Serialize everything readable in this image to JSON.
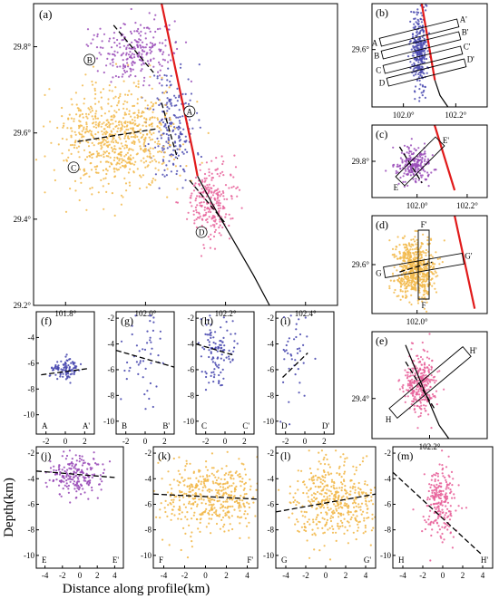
{
  "colors": {
    "A": "#4a4ab0",
    "B": "#9a4cb8",
    "C": "#f2b84a",
    "D": "#e8629a",
    "fault": "#e11b1b",
    "trace": "#000000"
  },
  "axis_labels": {
    "y": "Depth(km)",
    "x": "Distance along profile(km)"
  },
  "chart_data": [
    {
      "type": "scatter",
      "panel": "(a)",
      "xticks": [
        "101.8°",
        "102.0°",
        "102.2°",
        "102.4°"
      ],
      "yticks": [
        "29.8°",
        "29.6°",
        "29.4°",
        "29.2°"
      ],
      "xlim": [
        101.72,
        102.48
      ],
      "ylim": [
        29.2,
        29.9
      ],
      "cluster_labels": [
        "A",
        "B",
        "C",
        "D"
      ],
      "clusters": [
        {
          "name": "A",
          "center": [
            102.07,
            29.62
          ],
          "spread": [
            0.028,
            0.07
          ],
          "count": 200
        },
        {
          "name": "B",
          "center": [
            101.97,
            29.79
          ],
          "spread": [
            0.05,
            0.035
          ],
          "count": 240
        },
        {
          "name": "C",
          "center": [
            101.93,
            29.59
          ],
          "spread": [
            0.07,
            0.06
          ],
          "count": 700
        },
        {
          "name": "D",
          "center": [
            102.16,
            29.44
          ],
          "spread": [
            0.03,
            0.045
          ],
          "count": 260
        }
      ],
      "fault_line": [
        [
          102.04,
          29.9
        ],
        [
          102.12,
          29.55
        ],
        [
          102.13,
          29.5
        ]
      ],
      "trace_line": [
        [
          102.13,
          29.5
        ],
        [
          102.17,
          29.43
        ],
        [
          102.22,
          29.35
        ],
        [
          102.27,
          29.27
        ],
        [
          102.31,
          29.2
        ]
      ],
      "fit_lines": [
        [
          [
            101.92,
            29.85
          ],
          [
            102.02,
            29.74
          ]
        ],
        [
          [
            101.83,
            29.58
          ],
          [
            102.03,
            29.61
          ]
        ],
        [
          [
            102.04,
            29.67
          ],
          [
            102.08,
            29.54
          ]
        ],
        [
          [
            102.11,
            29.49
          ],
          [
            102.2,
            29.39
          ]
        ]
      ]
    },
    {
      "type": "scatter",
      "panel": "(b)",
      "xticks": [
        "102.0°",
        "102.2°"
      ],
      "yticks": [
        "29.6°"
      ],
      "xlim": [
        101.88,
        102.32
      ],
      "ylim": [
        29.45,
        29.72
      ],
      "profile_labels": [
        "A",
        "A'",
        "B",
        "B'",
        "C",
        "C'",
        "D",
        "D'"
      ],
      "cluster": {
        "name": "A",
        "center": [
          102.06,
          29.6
        ],
        "spread": [
          0.015,
          0.05
        ],
        "count": 300
      },
      "fault_line": [
        [
          102.07,
          29.72
        ],
        [
          102.12,
          29.52
        ]
      ],
      "trace_line": [
        [
          102.12,
          29.52
        ],
        [
          102.14,
          29.48
        ],
        [
          102.17,
          29.45
        ]
      ]
    },
    {
      "type": "scatter",
      "panel": "(c)",
      "xticks": [
        "102.0°",
        "102.2°"
      ],
      "yticks": [
        "29.8°"
      ],
      "xlim": [
        101.82,
        102.28
      ],
      "ylim": [
        29.7,
        29.9
      ],
      "profile_labels": [
        "E",
        "E'"
      ],
      "cluster": {
        "name": "B",
        "center": [
          101.99,
          29.79
        ],
        "spread": [
          0.035,
          0.025
        ],
        "count": 220
      },
      "fault_line": [
        [
          102.07,
          29.9
        ],
        [
          102.15,
          29.72
        ]
      ]
    },
    {
      "type": "scatter",
      "panel": "(d)",
      "xticks": [
        "102.0°"
      ],
      "yticks": [
        "29.6°"
      ],
      "xlim": [
        101.82,
        102.28
      ],
      "ylim": [
        29.5,
        29.7
      ],
      "profile_labels": [
        "F",
        "F'",
        "G",
        "G'"
      ],
      "cluster": {
        "name": "C",
        "center": [
          101.99,
          29.59
        ],
        "spread": [
          0.04,
          0.03
        ],
        "count": 600
      },
      "fault_line": [
        [
          102.15,
          29.7
        ],
        [
          102.23,
          29.51
        ]
      ]
    },
    {
      "type": "scatter",
      "panel": "(e)",
      "xticks": [
        "102.2°"
      ],
      "yticks": [
        "29.4°"
      ],
      "xlim": [
        102.08,
        102.32
      ],
      "ylim": [
        29.34,
        29.5
      ],
      "profile_labels": [
        "H",
        "H'"
      ],
      "cluster": {
        "name": "D",
        "center": [
          102.18,
          29.42
        ],
        "spread": [
          0.018,
          0.022
        ],
        "count": 300
      },
      "trace_line": [
        [
          102.15,
          29.48
        ],
        [
          102.19,
          29.41
        ],
        [
          102.22,
          29.36
        ],
        [
          102.24,
          29.34
        ]
      ]
    },
    {
      "type": "scatter",
      "panel": "(f)",
      "cluster": "A",
      "profile_ends": [
        "A",
        "A'"
      ],
      "xticks": [
        "-2",
        "0",
        "2"
      ],
      "yticks": [
        "-4",
        "-6",
        "-8",
        "-10"
      ],
      "xlim": [
        -3,
        3
      ],
      "ylim": [
        -11.5,
        -2
      ],
      "points_model": {
        "center_x": 0,
        "center_y": -6.5,
        "spread_x": 0.8,
        "spread_y": 0.4,
        "count": 100
      },
      "fit": [
        [
          -2.5,
          -6.9
        ],
        [
          2.5,
          -6.4
        ]
      ]
    },
    {
      "type": "scatter",
      "panel": "(g)",
      "cluster": "A",
      "profile_ends": [
        "B",
        "B'"
      ],
      "xticks": [
        "-2",
        "0",
        "2"
      ],
      "yticks": [
        "-2",
        "-4",
        "-6",
        "-8",
        "-10"
      ],
      "xlim": [
        -3,
        3
      ],
      "ylim": [
        -11,
        -1.5
      ],
      "points_model": {
        "center_x": -0.2,
        "center_y": -5,
        "spread_x": 1.1,
        "spread_y": 2,
        "count": 50
      },
      "fit": [
        [
          -3,
          -4.5
        ],
        [
          3,
          -5.8
        ]
      ]
    },
    {
      "type": "scatter",
      "panel": "(h)",
      "cluster": "A",
      "profile_ends": [
        "C",
        "C'"
      ],
      "xticks": [
        "-2",
        "0",
        "2"
      ],
      "yticks": [
        "-2",
        "-4",
        "-6",
        "-8",
        "-10"
      ],
      "xlim": [
        -3,
        3
      ],
      "ylim": [
        -11,
        -1.5
      ],
      "points_model": {
        "center_x": -0.8,
        "center_y": -4.6,
        "spread_x": 0.9,
        "spread_y": 1.4,
        "count": 110
      },
      "fit": [
        [
          -3,
          -4
        ],
        [
          1,
          -4.9
        ]
      ]
    },
    {
      "type": "scatter",
      "panel": "(i)",
      "cluster": "A",
      "profile_ends": [
        "D",
        "D'"
      ],
      "xticks": [
        "-2",
        "0",
        "2"
      ],
      "yticks": [
        "-2",
        "-4",
        "-6",
        "-8",
        "-10"
      ],
      "xlim": [
        -3,
        3
      ],
      "ylim": [
        -11,
        -1.5
      ],
      "points_model": {
        "center_x": -1,
        "center_y": -5.5,
        "spread_x": 0.7,
        "spread_y": 2,
        "count": 40
      },
      "fit": [
        [
          -2.3,
          -6.6
        ],
        [
          0.3,
          -4.7
        ]
      ]
    },
    {
      "type": "scatter",
      "panel": "(j)",
      "cluster": "B",
      "profile_ends": [
        "E",
        "E'"
      ],
      "xticks": [
        "-4",
        "-2",
        "0",
        "2",
        "4"
      ],
      "yticks": [
        "-2",
        "-4",
        "-6",
        "-8",
        "-10"
      ],
      "xlim": [
        -5,
        5
      ],
      "ylim": [
        -11,
        -1.5
      ],
      "points_model": {
        "center_x": -0.3,
        "center_y": -3.6,
        "spread_x": 1.6,
        "spread_y": 0.8,
        "count": 200
      },
      "fit": [
        [
          -5,
          -3.4
        ],
        [
          4,
          -3.9
        ]
      ]
    },
    {
      "type": "scatter",
      "panel": "(k)",
      "cluster": "C",
      "profile_ends": [
        "F",
        "F'"
      ],
      "xticks": [
        "-4",
        "-2",
        "0",
        "2",
        "4"
      ],
      "yticks": [
        "-2",
        "-4",
        "-6",
        "-8",
        "-10"
      ],
      "xlim": [
        -5,
        5
      ],
      "ylim": [
        -11,
        -1.5
      ],
      "points_model": {
        "center_x": 0.5,
        "center_y": -5.5,
        "spread_x": 2.4,
        "spread_y": 1.4,
        "count": 450
      },
      "fit": [
        [
          -5,
          -5.2
        ],
        [
          5,
          -5.6
        ]
      ]
    },
    {
      "type": "scatter",
      "panel": "(l)",
      "cluster": "C",
      "profile_ends": [
        "G",
        "G'"
      ],
      "xticks": [
        "-4",
        "-2",
        "0",
        "2",
        "4"
      ],
      "yticks": [
        "-2",
        "-4",
        "-6",
        "-8",
        "-10"
      ],
      "xlim": [
        -5,
        5
      ],
      "ylim": [
        -11,
        -1.5
      ],
      "points_model": {
        "center_x": 1,
        "center_y": -5.8,
        "spread_x": 2.2,
        "spread_y": 1.6,
        "count": 450
      },
      "fit": [
        [
          -5,
          -6.6
        ],
        [
          5,
          -5.2
        ]
      ]
    },
    {
      "type": "scatter",
      "panel": "(m)",
      "cluster": "D",
      "profile_ends": [
        "H",
        "H'"
      ],
      "xticks": [
        "-4",
        "-2",
        "0",
        "2",
        "4"
      ],
      "yticks": [
        "-2",
        "-4",
        "-6",
        "-8",
        "-10"
      ],
      "xlim": [
        -5,
        5
      ],
      "ylim": [
        -11,
        -1.5
      ],
      "points_model": {
        "center_x": -0.2,
        "center_y": -5.8,
        "spread_x": 0.8,
        "spread_y": 1.3,
        "count": 220
      },
      "fit": [
        [
          -5,
          -3.5
        ],
        [
          4,
          -10
        ]
      ]
    }
  ]
}
